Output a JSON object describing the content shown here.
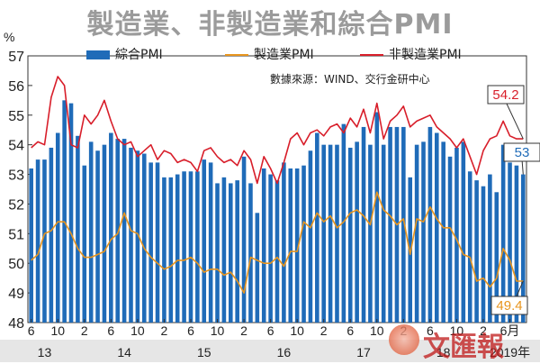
{
  "title": "製造業、非製造業和綜合PMI",
  "source": "數據來源：WIND、交行金研中心",
  "watermark": "文匯報",
  "colors": {
    "composite": "#1f6bb8",
    "manufacturing": "#e8951e",
    "non_manufacturing": "#d81e2a"
  },
  "chart_data": {
    "type": "bar+line",
    "unit_label": "%",
    "ylim": [
      48,
      57
    ],
    "yticks": [
      48,
      49,
      50,
      51,
      52,
      53,
      54,
      55,
      56,
      57
    ],
    "x_month_labels": [
      "6",
      "10",
      "2",
      "6",
      "10",
      "2",
      "6",
      "10",
      "2",
      "6",
      "10",
      "2",
      "6",
      "10",
      "2",
      "6",
      "10",
      "2",
      "6月"
    ],
    "x_year_labels": [
      "13",
      "14",
      "15",
      "16",
      "17",
      "18",
      "2019年"
    ],
    "series": [
      {
        "name": "綜合PMI",
        "type": "bar",
        "values": [
          53.2,
          53.5,
          53.5,
          53.9,
          54.4,
          55.5,
          55.4,
          54.3,
          53.3,
          54.1,
          53.8,
          54.0,
          54.4,
          54.2,
          54.2,
          53.9,
          53.8,
          53.7,
          53.4,
          53.4,
          52.9,
          52.9,
          53.0,
          53.1,
          53.1,
          53.1,
          53.5,
          53.4,
          52.7,
          52.9,
          52.7,
          52.8,
          53.6,
          52.7,
          51.7,
          53.2,
          53.0,
          52.8,
          53.4,
          53.2,
          53.2,
          53.3,
          53.8,
          54.4,
          54.0,
          54.0,
          54.0,
          54.7,
          53.9,
          54.1,
          54.6,
          54.0,
          55.1,
          54.0,
          54.6,
          54.6,
          54.6,
          52.9,
          54.0,
          54.1,
          54.6,
          54.4,
          54.1,
          53.6,
          53.9,
          54.1,
          53.1,
          52.8,
          52.6,
          53.0,
          52.4,
          54.0,
          53.4,
          53.3,
          53.0
        ]
      },
      {
        "name": "製造業PMI",
        "type": "line",
        "values": [
          50.1,
          50.3,
          51.0,
          51.1,
          51.4,
          51.4,
          51.0,
          50.5,
          50.2,
          50.2,
          50.3,
          50.4,
          50.8,
          51.0,
          51.7,
          51.1,
          51.0,
          50.5,
          50.2,
          50.0,
          49.8,
          49.9,
          50.1,
          50.1,
          50.2,
          50.0,
          49.7,
          49.8,
          49.8,
          49.6,
          49.7,
          49.4,
          49.0,
          50.2,
          50.1,
          50.0,
          50.0,
          50.2,
          49.9,
          50.4,
          50.4,
          51.4,
          51.2,
          51.7,
          51.4,
          51.6,
          51.2,
          51.4,
          51.7,
          51.8,
          51.6,
          51.3,
          52.4,
          51.8,
          51.6,
          51.3,
          51.5,
          50.3,
          51.5,
          51.4,
          51.9,
          51.5,
          51.2,
          51.2,
          50.8,
          50.3,
          50.2,
          49.4,
          49.5,
          49.2,
          49.5,
          50.5,
          50.1,
          49.4,
          49.4
        ]
      },
      {
        "name": "非製造業PMI",
        "type": "line",
        "values": [
          53.9,
          54.1,
          54.0,
          55.6,
          56.3,
          56.0,
          54.0,
          53.9,
          55.0,
          54.7,
          55.0,
          55.5,
          54.8,
          54.2,
          54.0,
          54.1,
          53.6,
          53.8,
          54.0,
          53.5,
          53.8,
          53.7,
          53.4,
          53.5,
          53.4,
          53.1,
          53.8,
          53.9,
          53.6,
          53.4,
          53.5,
          53.3,
          53.8,
          53.5,
          52.7,
          53.6,
          53.2,
          52.7,
          53.4,
          54.2,
          54.4,
          54.0,
          54.4,
          54.5,
          54.3,
          54.6,
          54.7,
          54.4,
          54.9,
          54.6,
          55.2,
          54.4,
          55.4,
          54.2,
          54.8,
          55.0,
          55.3,
          54.6,
          54.8,
          54.9,
          55.0,
          54.6,
          54.4,
          54.2,
          53.9,
          54.2,
          53.6,
          53.0,
          53.8,
          54.2,
          54.3,
          54.8,
          54.3,
          54.2,
          54.2
        ]
      }
    ],
    "end_labels": {
      "non_manufacturing": "54.2",
      "composite": "53",
      "manufacturing": "49.4"
    }
  }
}
